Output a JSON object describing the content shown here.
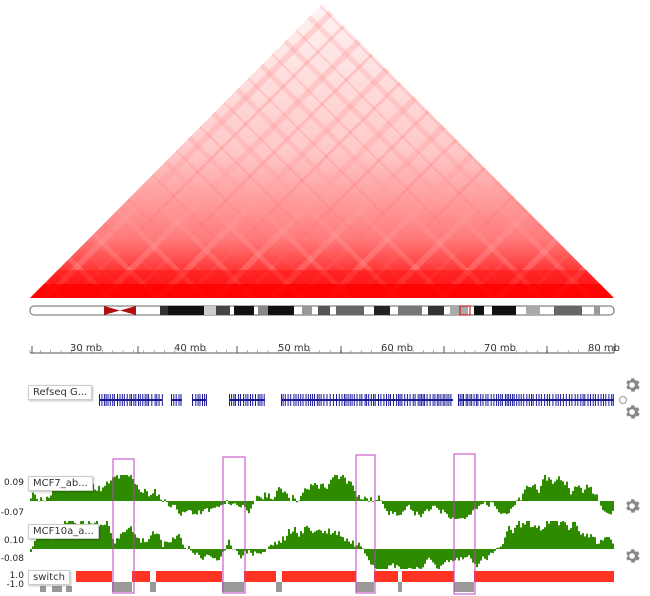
{
  "ruler": {
    "ticks": [
      "30 mb",
      "40 mb",
      "50 mb",
      "60 mb",
      "70 mb",
      "80 mb"
    ]
  },
  "tracks": {
    "refseq": {
      "label": "Refseq G..."
    },
    "mcf7": {
      "label": "MCF7_ab...",
      "max": "0.09",
      "min": "-0.07"
    },
    "mcf10a": {
      "label": "MCF10a_a...",
      "max": "0.10",
      "min": "-0.08"
    },
    "switch": {
      "label": "switch",
      "max": "1.0",
      "min": "-1.0"
    }
  },
  "icons": {
    "gear": "gear-icon",
    "circle": "settings-circle-icon"
  },
  "colors": {
    "heatmap": "#ff0000",
    "gene": "#1a1a99",
    "compartment": "#2e8b00",
    "switch_pos": "#ff3322",
    "switch_neg": "#999999",
    "highlight": "#c040c0"
  }
}
